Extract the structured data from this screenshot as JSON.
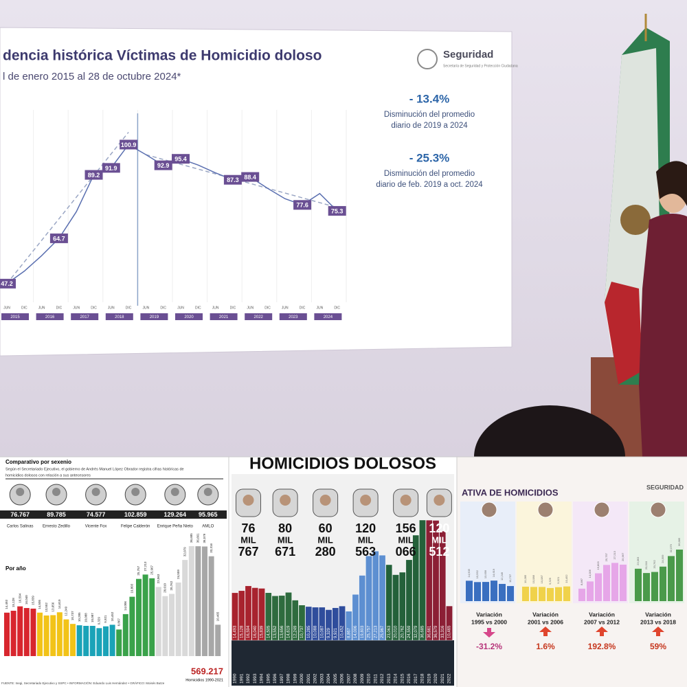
{
  "screen": {
    "title": "dencia histórica Víctimas de Homicidio doloso",
    "subtitle": "l de enero 2015 al 28 de octubre 2024*",
    "logo": "Seguridad",
    "logo_sub": "Secretaría de Seguridad y Protección Ciudadana",
    "stats": [
      {
        "value": "- 13.4%",
        "text": [
          "Disminución del promedio",
          "diario de 2019 a 2024"
        ]
      },
      {
        "value": "- 25.3%",
        "text": [
          "Disminución del promedio",
          "diario de feb. 2019 a oct. 2024"
        ]
      }
    ],
    "chart": {
      "type": "line",
      "color": "#5a6fb0",
      "label_color": "#6a4f93",
      "categories": [
        "JUN",
        "DIC",
        "JUN",
        "DIC",
        "JUN",
        "DIC",
        "JUN",
        "DIC",
        "JUN",
        "DIC",
        "JUN",
        "DIC",
        "JUN",
        "DIC",
        "JUN",
        "DIC",
        "JUN",
        "DIC",
        "JUN",
        "DIC"
      ],
      "years": [
        2015,
        2016,
        2017,
        2018,
        2019,
        2020,
        2021,
        2022,
        2023,
        2024
      ],
      "values": [
        47.2,
        52,
        58,
        64.7,
        75,
        89.2,
        91.9,
        100.9,
        97,
        92.9,
        95.4,
        93,
        90,
        87.3,
        88.4,
        84,
        80,
        77.6,
        82,
        75.3
      ],
      "value_labels": [
        "47.2",
        null,
        null,
        "64.7",
        null,
        "89.2",
        "91.9",
        "100.9",
        null,
        "92.9",
        "95.4",
        null,
        null,
        "87.3",
        "88.4",
        null,
        null,
        "77.6",
        null,
        "75.3"
      ],
      "ylim": [
        40,
        105
      ]
    }
  },
  "left": {
    "title": "Comparativo por sexenio",
    "text": [
      "Según el Secretariado Ejecutivo, el gobierno de Andrés Manuel López Obrador registra cifras históricas de",
      "homicidios dolosos con relación a sus antecesores"
    ],
    "per_year": "Por año",
    "total": "569.217",
    "total_label": "Homicidios 1990-2021",
    "source": "FUENTE: Inegi, Secretariado Ejecutivo y SSPC • INFORMACIÓN: Eduardo Luis Hernández • GRÁFICO: Moisés Butze"
  },
  "middle": {
    "title": "HOMICIDIOS DOLOSOS"
  },
  "right": {
    "title": "ATIVA DE HOMICIDIOS",
    "logo": "SEGURIDAD",
    "variation_title": "Variación",
    "variations": [
      {
        "period": "1995 vs 2000",
        "value": -31.2,
        "value_label": "-31.2%"
      },
      {
        "period": "2001 vs 2006",
        "value": 1.6,
        "value_label": "1.6%"
      },
      {
        "period": "2007 vs 2012",
        "value": 192.8,
        "value_label": "192.8%"
      },
      {
        "period": "2013 vs 2018",
        "value": 59,
        "value_label": "59%"
      }
    ]
  },
  "sexenios": [
    {
      "name": "Carlos Salinas",
      "total": "76.767",
      "middle_total": [
        "76",
        "MIL",
        "767"
      ],
      "color": "#a8232e",
      "color_alt": "#d8262e",
      "years": [
        1990,
        1991,
        1992,
        1993,
        1994
      ],
      "values": [
        14493,
        15128,
        16594,
        16040,
        15839
      ],
      "value_labels": [
        "14,493",
        "15,128",
        "16,594",
        "16,040",
        "15,839"
      ]
    },
    {
      "name": "Ernesto Zedillo",
      "total": "89.785",
      "middle_total": [
        "80",
        "MIL",
        "671"
      ],
      "color": "#2e6b3e",
      "color_alt": "#f2c318",
      "years": [
        1995,
        1996,
        1997,
        1998,
        1999,
        2000
      ],
      "values": [
        14505,
        13552,
        13656,
        14619,
        12249,
        10737
      ],
      "value_labels": [
        "14,505",
        "13,552",
        "13,656",
        "14,619",
        "12,249",
        "10,737"
      ]
    },
    {
      "name": "Vicente Fox",
      "total": "74.577",
      "middle_total": [
        "60",
        "MIL",
        "280"
      ],
      "color": "#2f4d9c",
      "color_alt": "#1aa3b8",
      "years": [
        2001,
        2002,
        2003,
        2004,
        2005,
        2006
      ],
      "values": [
        10285,
        10088,
        10087,
        9329,
        9921,
        10452
      ],
      "value_labels": [
        "10,285",
        "10,088",
        "10,087",
        "9,329",
        "9,921",
        "10,452"
      ]
    },
    {
      "name": "Felipe Calderón",
      "total": "102.859",
      "middle_total": [
        "120",
        "MIL",
        "563"
      ],
      "color": "#5d8fd1",
      "color_alt": "#3aa24a",
      "years": [
        2007,
        2008,
        2009,
        2010,
        2011,
        2012
      ],
      "values": [
        8867,
        14006,
        19803,
        25757,
        27213,
        25967
      ],
      "value_labels": [
        "8,867",
        "14,006",
        "19,803",
        "25,757",
        "27,213",
        "25,967"
      ]
    },
    {
      "name": "Enrique Peña Nieto",
      "total": "129.264",
      "middle_total": [
        "156",
        "MIL",
        "066"
      ],
      "color": "#24613a",
      "color_alt": "#d9d9d9",
      "years": [
        2013,
        2014,
        2015,
        2016,
        2017,
        2018
      ],
      "values": [
        23063,
        20010,
        20762,
        24559,
        32079,
        36685
      ],
      "value_labels": [
        "23,063",
        "20,010",
        "20,762",
        "24,559",
        "32,079",
        "36,685"
      ]
    },
    {
      "name": "AMLO",
      "total": "95.965",
      "middle_total": [
        "120",
        "MIL",
        "512"
      ],
      "color": "#8c1f35",
      "color_alt": "#a7a7a7",
      "years": [
        2019,
        2020,
        2021,
        2022
      ],
      "values": [
        36661,
        36579,
        33316,
        10465
      ],
      "value_labels": [
        "36,661",
        "36,579",
        "33,316",
        "10,465"
      ]
    }
  ]
}
